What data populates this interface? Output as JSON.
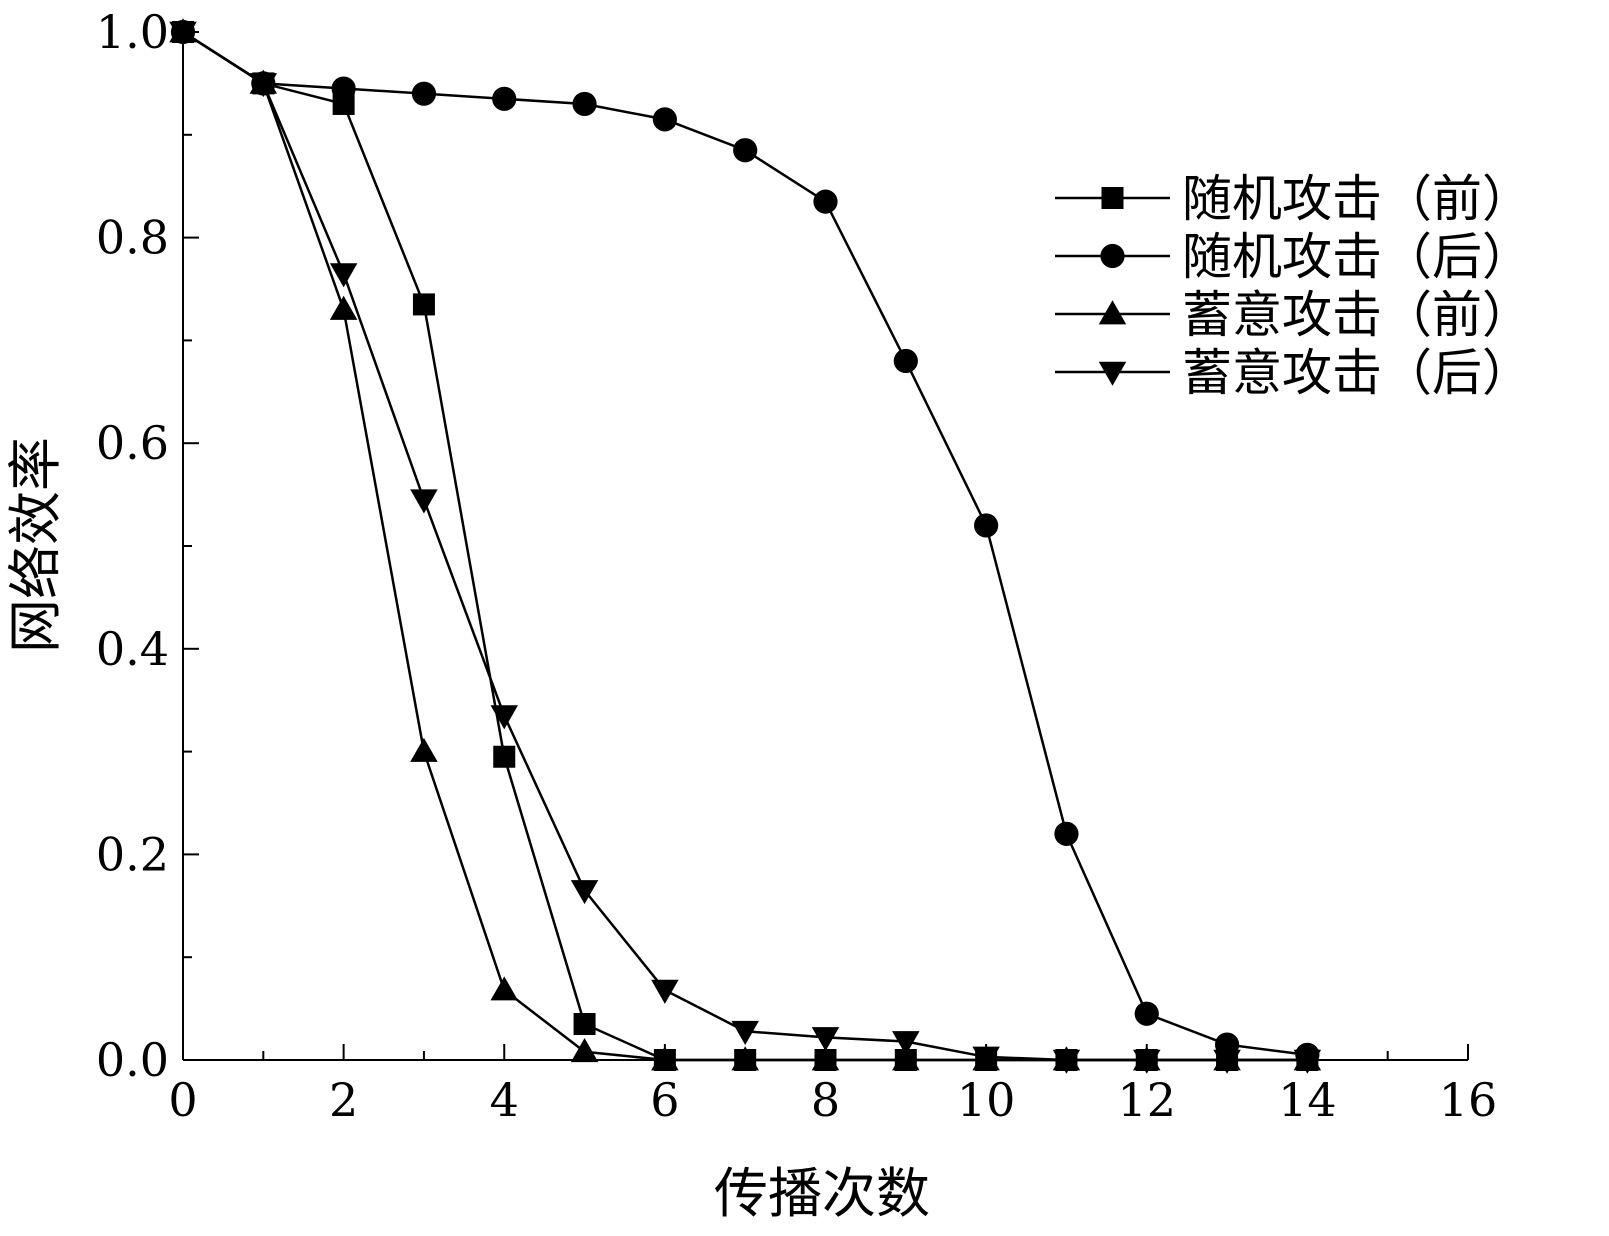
{
  "chart_data": {
    "type": "line",
    "title": "",
    "xlabel": "传播次数",
    "ylabel": "网络效率",
    "xlim": [
      0,
      16
    ],
    "ylim": [
      0,
      1.0
    ],
    "x_ticks": [
      "0",
      "2",
      "4",
      "6",
      "8",
      "10",
      "12",
      "14",
      "16"
    ],
    "y_ticks": [
      "0.0",
      "0.2",
      "0.4",
      "0.6",
      "0.8",
      "1.0"
    ],
    "grid": false,
    "legend_position": "top-right",
    "series": [
      {
        "name": "随机攻击（前）",
        "marker": "square",
        "x": [
          0,
          1,
          2,
          3,
          4,
          5,
          6,
          7,
          8,
          9,
          10,
          11,
          12,
          13,
          14
        ],
        "y": [
          1.0,
          0.95,
          0.93,
          0.735,
          0.295,
          0.035,
          0.0,
          0.0,
          0.0,
          0.0,
          0.0,
          0.0,
          0.0,
          0.0,
          0.0
        ]
      },
      {
        "name": "随机攻击（后）",
        "marker": "circle",
        "x": [
          0,
          1,
          2,
          3,
          4,
          5,
          6,
          7,
          8,
          9,
          10,
          11,
          12,
          13,
          14
        ],
        "y": [
          1.0,
          0.95,
          0.945,
          0.94,
          0.935,
          0.93,
          0.915,
          0.885,
          0.835,
          0.68,
          0.52,
          0.22,
          0.045,
          0.015,
          0.005
        ]
      },
      {
        "name": "蓄意攻击（前）",
        "marker": "triangle-up",
        "x": [
          0,
          1,
          2,
          3,
          4,
          5,
          6,
          7,
          8,
          9,
          10,
          11,
          12,
          13,
          14
        ],
        "y": [
          1.0,
          0.95,
          0.73,
          0.3,
          0.068,
          0.008,
          0.0,
          0.0,
          0.0,
          0.0,
          0.0,
          0.0,
          0.0,
          0.0,
          0.0
        ]
      },
      {
        "name": "蓄意攻击（后）",
        "marker": "triangle-down",
        "x": [
          0,
          1,
          2,
          3,
          4,
          5,
          6,
          7,
          8,
          9,
          10,
          11,
          12,
          13,
          14
        ],
        "y": [
          1.0,
          0.95,
          0.765,
          0.545,
          0.335,
          0.165,
          0.068,
          0.028,
          0.022,
          0.018,
          0.003,
          0.0,
          0.0,
          0.0,
          0.0
        ]
      }
    ]
  },
  "colors": {
    "ink": "#000000",
    "background": "#ffffff"
  }
}
